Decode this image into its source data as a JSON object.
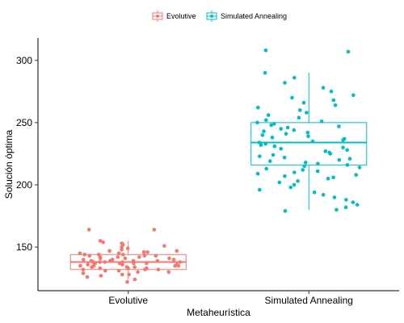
{
  "chart_data": {
    "type": "boxplot",
    "title": "",
    "xlabel": "Metaheurística",
    "ylabel": "Solución óptima",
    "categories": [
      "Evolutive",
      "Simulated Annealing"
    ],
    "yticks": [
      150,
      200,
      250,
      300
    ],
    "ylim": [
      115,
      318
    ],
    "grid": false,
    "legend_position": "top",
    "legend": [
      "Evolutive",
      "Simulated Annealing"
    ],
    "colors": {
      "Evolutive": "#F8766D",
      "Simulated Annealing": "#00BFC4"
    },
    "boxes": [
      {
        "name": "Evolutive",
        "whisker_low": 124,
        "q1": 132,
        "median": 138,
        "q3": 144,
        "whisker_high": 155
      },
      {
        "name": "Simulated Annealing",
        "whisker_low": 180,
        "q1": 216,
        "median": 234,
        "q3": 250,
        "whisker_high": 290
      }
    ],
    "points": [
      {
        "name": "Evolutive",
        "values": [
          122,
          124,
          126,
          127,
          128,
          128,
          129,
          130,
          130,
          131,
          131,
          132,
          132,
          132,
          133,
          133,
          133,
          134,
          134,
          134,
          135,
          135,
          135,
          135,
          136,
          136,
          136,
          137,
          137,
          137,
          137,
          138,
          138,
          138,
          138,
          138,
          139,
          139,
          139,
          139,
          140,
          140,
          140,
          140,
          141,
          141,
          141,
          142,
          142,
          142,
          143,
          143,
          143,
          144,
          144,
          144,
          145,
          145,
          146,
          146,
          147,
          147,
          148,
          149,
          150,
          151,
          152,
          153,
          154,
          155,
          164,
          164
        ]
      },
      {
        "name": "Simulated Annealing",
        "values": [
          179,
          180,
          182,
          184,
          186,
          188,
          190,
          192,
          194,
          196,
          198,
          200,
          202,
          203,
          205,
          206,
          207,
          208,
          209,
          210,
          211,
          212,
          213,
          214,
          215,
          216,
          217,
          218,
          219,
          220,
          221,
          222,
          223,
          224,
          225,
          226,
          227,
          228,
          229,
          230,
          231,
          232,
          233,
          234,
          235,
          236,
          237,
          238,
          239,
          240,
          241,
          242,
          243,
          244,
          245,
          246,
          247,
          248,
          249,
          250,
          251,
          252,
          254,
          256,
          258,
          260,
          262,
          264,
          266,
          268,
          270,
          272,
          275,
          278,
          282,
          286,
          290,
          307,
          308
        ]
      }
    ]
  }
}
